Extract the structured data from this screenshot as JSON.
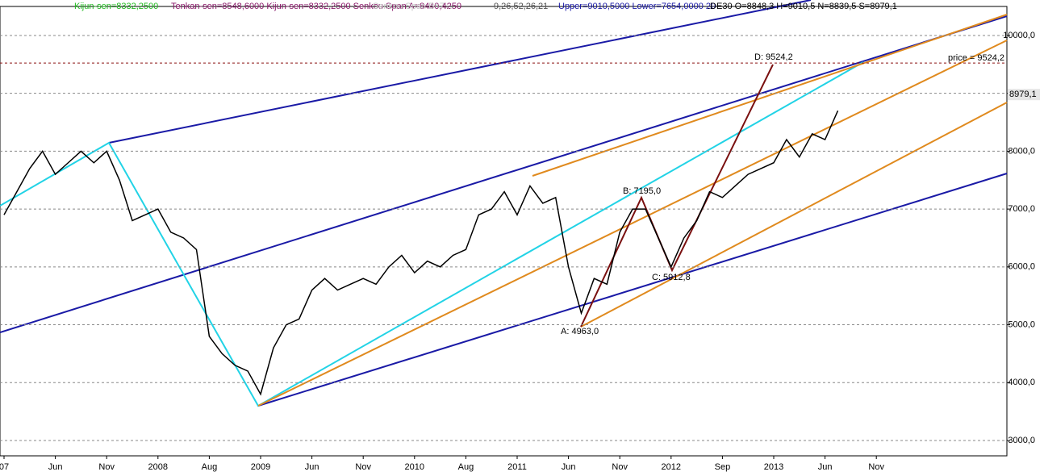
{
  "chart_data": {
    "type": "line",
    "header": [
      {
        "text": "Kijun-sen=8332,2500",
        "color": "#22bb22"
      },
      {
        "text": "Tenkan-sen=8548,6000 Kijun-sen=8332,2500 Senkou Span A=8440,4250",
        "color": "#8b1a6b"
      },
      {
        "text": "Senkou Span B=7...",
        "color": "#c8c8c8"
      },
      {
        "text": "9,26,52,26,21",
        "color": "#555555"
      },
      {
        "text": "Upper=9010,5000 Lower=7654,0000  20",
        "color": "#1a1aa6"
      },
      {
        "text": ".DE30 O=8848,3 H=9010,5 N=8839,5 S=8979,1",
        "color": "#000000"
      }
    ],
    "categories": [
      "07",
      null,
      null,
      null,
      "Jun",
      null,
      null,
      null,
      "Nov",
      null,
      null,
      null,
      "2008",
      null,
      null,
      null,
      "Aug",
      null,
      null,
      null,
      "2009",
      null,
      null,
      null,
      "Jun",
      null,
      null,
      null,
      "Nov",
      null,
      null,
      null,
      "2010",
      null,
      null,
      null,
      "Aug",
      null,
      null,
      null,
      "2011",
      null,
      null,
      null,
      "Jun",
      null,
      null,
      null,
      "Nov",
      null,
      null,
      null,
      "2012",
      null,
      null,
      null,
      "Sep",
      null,
      null,
      null,
      "2013",
      null,
      null,
      null,
      "Jun",
      null,
      null,
      null,
      "Nov",
      null,
      null,
      null
    ],
    "series": [
      {
        "color": "#000000",
        "values": [
          6900,
          7300,
          7700,
          8000,
          7600,
          7800,
          8000,
          7800,
          8000,
          7500,
          6800,
          6900,
          7000,
          6600,
          6500,
          6300,
          4800,
          4500,
          4300,
          4200,
          3800,
          4600,
          5000,
          5100,
          5600,
          5800,
          5600,
          5700,
          5800,
          5700,
          6000,
          6200,
          5900,
          6100,
          6000,
          6200,
          6300,
          6900,
          7000,
          7300,
          6900,
          7400,
          7100,
          7200,
          6000,
          5200,
          5800,
          5700,
          6600,
          7000,
          7000,
          6500,
          6000,
          6500,
          6800,
          7300,
          7200,
          7400,
          7600,
          7700,
          7800,
          8200,
          7900,
          8300,
          8200,
          8700,
          null,
          null,
          null,
          null,
          null,
          null
        ]
      }
    ],
    "ylim": [
      2735,
      10613
    ],
    "yticks": [
      {
        "value": 3000,
        "label": "3000,0"
      },
      {
        "value": 4000,
        "label": "4000,0"
      },
      {
        "value": 5000,
        "label": "5000,0"
      },
      {
        "value": 6000,
        "label": "6000,0"
      },
      {
        "value": 7000,
        "label": "7000,0"
      },
      {
        "value": 8000,
        "label": "8000,0"
      },
      {
        "value": 9000,
        "label": ""
      },
      {
        "value": 10000,
        "label": "10000,0"
      }
    ],
    "price_line": {
      "value": 9524.2,
      "label": "price = 9524,2"
    },
    "last_price": {
      "value": 8979.1,
      "label": "8979,1"
    },
    "annotations": [
      "D: 9524,2",
      "B: 7195,0",
      "C: 5912,8",
      "A: 4963,0"
    ],
    "grid": true
  }
}
